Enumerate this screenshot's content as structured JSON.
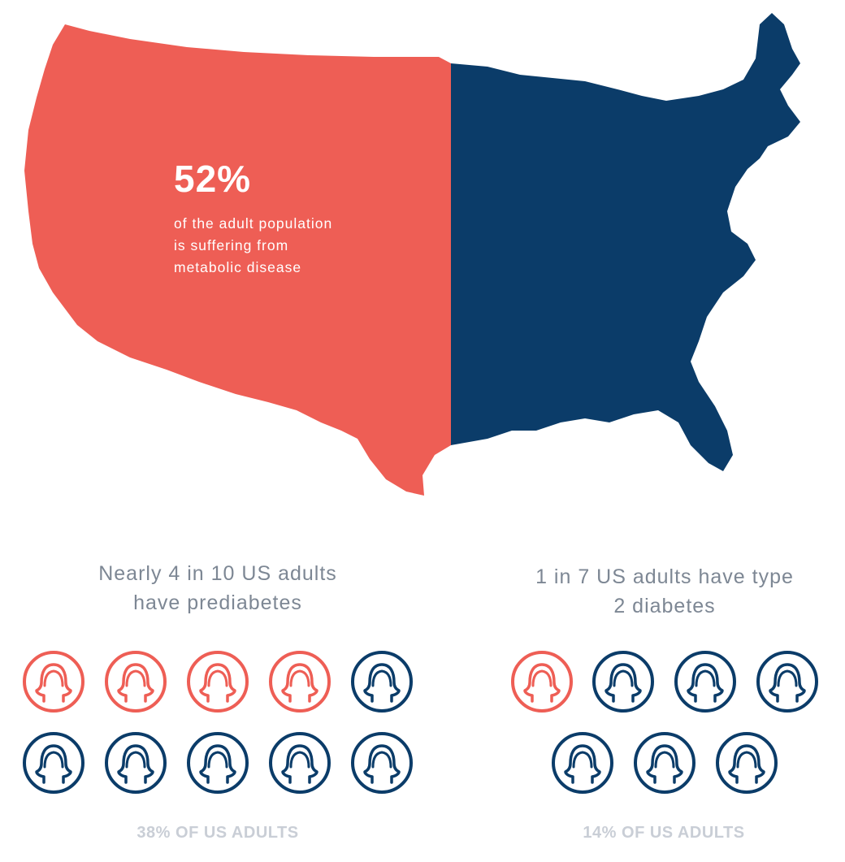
{
  "colors": {
    "coral": "#ee5e55",
    "navy": "#0b3c69",
    "heading": "#7d8794",
    "footer": "#c9ced6"
  },
  "map": {
    "highlight_pct": "52%",
    "description_lines": [
      "of the adult population",
      "is suffering from",
      "metabolic disease"
    ]
  },
  "left_panel": {
    "heading_lines": [
      "Nearly 4 in 10 US adults",
      "have prediabetes"
    ],
    "icon_count": 10,
    "highlighted_count": 4,
    "footer": "38% OF US ADULTS"
  },
  "right_panel": {
    "heading_lines": [
      "1 in 7 US adults have type",
      "2 diabetes"
    ],
    "icon_count": 7,
    "highlighted_count": 1,
    "footer": "14% OF US ADULTS"
  }
}
